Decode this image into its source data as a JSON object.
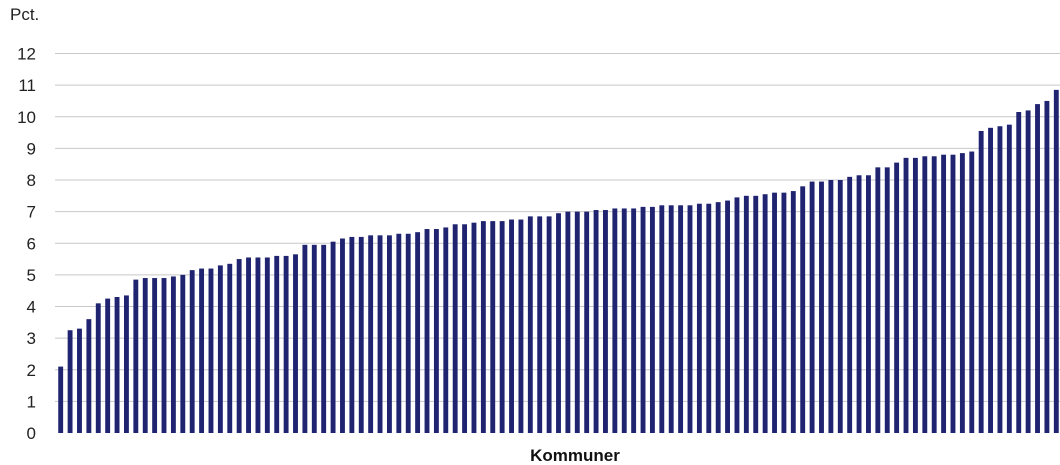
{
  "chart_data": {
    "type": "bar",
    "title": "",
    "y_unit_label": "Pct.",
    "xlabel": "Kommuner",
    "ylabel": "",
    "ylim": [
      0,
      12
    ],
    "y_ticks": [
      0,
      1,
      2,
      3,
      4,
      5,
      6,
      7,
      8,
      9,
      10,
      11,
      12
    ],
    "grid": true,
    "legend": "none",
    "bar_color": "#1f2370",
    "grid_color": "#c8c8c8",
    "values": [
      2.1,
      3.25,
      3.3,
      3.6,
      4.1,
      4.25,
      4.3,
      4.35,
      4.85,
      4.9,
      4.9,
      4.9,
      4.95,
      5.0,
      5.15,
      5.2,
      5.2,
      5.3,
      5.35,
      5.5,
      5.55,
      5.55,
      5.55,
      5.6,
      5.6,
      5.65,
      5.95,
      5.95,
      5.95,
      6.05,
      6.15,
      6.2,
      6.2,
      6.25,
      6.25,
      6.25,
      6.3,
      6.3,
      6.35,
      6.45,
      6.45,
      6.5,
      6.6,
      6.6,
      6.65,
      6.7,
      6.7,
      6.7,
      6.75,
      6.75,
      6.85,
      6.85,
      6.85,
      6.95,
      7.0,
      7.0,
      7.0,
      7.05,
      7.05,
      7.1,
      7.1,
      7.1,
      7.15,
      7.15,
      7.2,
      7.2,
      7.2,
      7.2,
      7.25,
      7.25,
      7.3,
      7.35,
      7.45,
      7.5,
      7.5,
      7.55,
      7.6,
      7.6,
      7.65,
      7.8,
      7.95,
      7.95,
      8.0,
      8.0,
      8.1,
      8.15,
      8.15,
      8.4,
      8.4,
      8.55,
      8.7,
      8.7,
      8.75,
      8.75,
      8.8,
      8.8,
      8.85,
      8.9,
      9.55,
      9.65,
      9.7,
      9.75,
      10.15,
      10.2,
      10.4,
      10.5,
      10.85
    ]
  }
}
